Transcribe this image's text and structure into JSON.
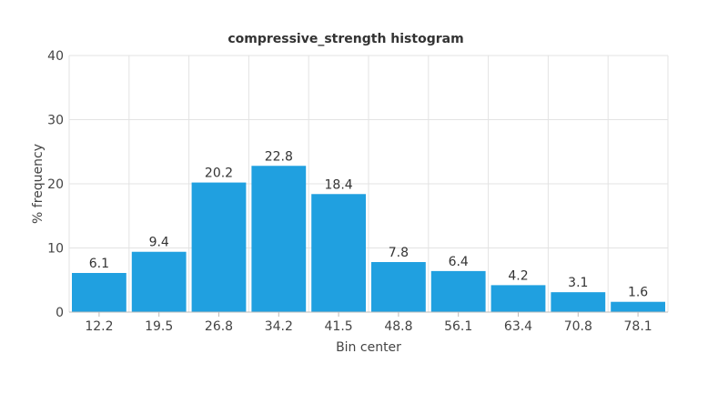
{
  "chart_data": {
    "type": "bar",
    "title": "compressive_strength histogram",
    "xlabel": "Bin center",
    "ylabel": "% frequency",
    "categories": [
      "12.2",
      "19.5",
      "26.8",
      "34.2",
      "41.5",
      "48.8",
      "56.1",
      "63.4",
      "70.8",
      "78.1"
    ],
    "values": [
      6.1,
      9.4,
      20.2,
      22.8,
      18.4,
      7.8,
      6.4,
      4.2,
      3.1,
      1.6
    ],
    "data_labels": [
      "6.1",
      "9.4",
      "20.2",
      "22.8",
      "18.4",
      "7.8",
      "6.4",
      "4.2",
      "3.1",
      "1.6"
    ],
    "ylim": [
      0,
      40
    ],
    "yticks": [
      "0",
      "10",
      "20",
      "30",
      "40"
    ],
    "grid": true,
    "legend": "none",
    "bar_color": "#20A0E0"
  }
}
